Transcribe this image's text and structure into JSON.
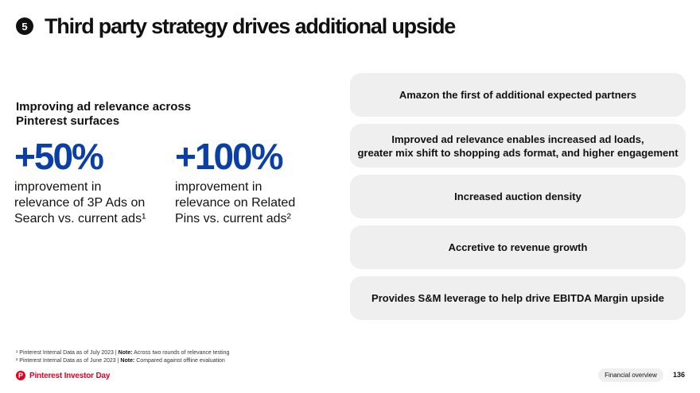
{
  "header": {
    "section_number": "5",
    "title": "Third party strategy drives additional upside"
  },
  "left": {
    "heading_lines": [
      "Improving ad relevance across",
      "Pinterest surfaces"
    ],
    "stats": [
      {
        "value": "+50%",
        "desc_lines": [
          "improvement in",
          "relevance of 3P Ads on",
          "Search vs. current ads¹"
        ]
      },
      {
        "value": "+100%",
        "desc_lines": [
          "improvement in",
          "relevance on Related",
          "Pins vs. current ads²"
        ]
      }
    ]
  },
  "cards": [
    {
      "lines": [
        "Amazon the first of additional expected partners"
      ]
    },
    {
      "lines": [
        "Improved ad relevance enables increased ad loads,",
        "greater mix shift to shopping ads format, and higher engagement"
      ]
    },
    {
      "lines": [
        "Increased auction density"
      ]
    },
    {
      "lines": [
        "Accretive to revenue growth"
      ]
    },
    {
      "lines": [
        "Provides S&M leverage to help drive EBITDA Margin upside"
      ]
    }
  ],
  "footnotes": [
    {
      "text": "¹ Pinterest Internal Data as of July 2023 | ",
      "note_label": "Note:",
      "note": " Across two rounds of relevance testing"
    },
    {
      "text": "² Pinterest Internal Data as of June 2023 | ",
      "note_label": "Note:",
      "note": " Compared against offline evaluation"
    }
  ],
  "footer": {
    "brand_icon": "pinterest-logo-icon",
    "brand_glyph": "P",
    "brand_text": "Pinterest Investor Day",
    "section_label": "Financial overview",
    "page_number": "136"
  },
  "colors": {
    "accent_blue": "#0a3fa8",
    "brand_red": "#e60023",
    "card_bg": "#efefef",
    "text": "#111111"
  }
}
